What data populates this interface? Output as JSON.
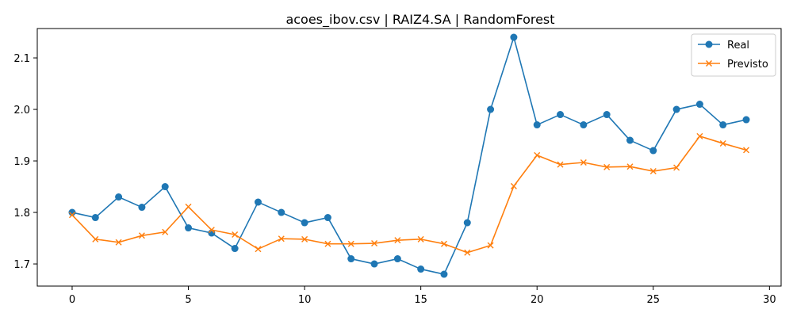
{
  "chart_data": {
    "type": "line",
    "title": "acoes_ibov.csv | RAIZ4.SA | RandomForest",
    "xlabel": "",
    "ylabel": "",
    "xlim": [
      -1.5,
      30.5
    ],
    "ylim": [
      1.657,
      2.157
    ],
    "x_ticks": [
      0,
      5,
      10,
      15,
      20,
      25,
      30
    ],
    "x_tick_labels": [
      "0",
      "5",
      "10",
      "15",
      "20",
      "25",
      "30"
    ],
    "y_ticks": [
      1.7,
      1.8,
      1.9,
      2.0,
      2.1
    ],
    "y_tick_labels": [
      "1.7",
      "1.8",
      "1.9",
      "2.0",
      "2.1"
    ],
    "grid": false,
    "legend_position": "top-right",
    "x": [
      0,
      1,
      2,
      3,
      4,
      5,
      6,
      7,
      8,
      9,
      10,
      11,
      12,
      13,
      14,
      15,
      16,
      17,
      18,
      19,
      20,
      21,
      22,
      23,
      24,
      25,
      26,
      27,
      28,
      29
    ],
    "series": [
      {
        "name": "Real",
        "color": "#1f77b4",
        "marker": "circle",
        "values": [
          1.8,
          1.79,
          1.83,
          1.81,
          1.85,
          1.77,
          1.76,
          1.73,
          1.82,
          1.8,
          1.78,
          1.79,
          1.71,
          1.7,
          1.71,
          1.69,
          1.68,
          1.78,
          2.0,
          2.14,
          1.97,
          1.99,
          1.97,
          1.99,
          1.94,
          1.92,
          2.0,
          2.01,
          1.97,
          1.98
        ]
      },
      {
        "name": "Previsto",
        "color": "#ff7f0e",
        "marker": "x",
        "values": [
          1.795,
          1.748,
          1.742,
          1.755,
          1.762,
          1.811,
          1.766,
          1.757,
          1.729,
          1.749,
          1.748,
          1.739,
          1.739,
          1.74,
          1.746,
          1.748,
          1.739,
          1.722,
          1.736,
          1.851,
          1.911,
          1.893,
          1.897,
          1.888,
          1.889,
          1.88,
          1.887,
          1.948,
          1.934,
          1.921
        ]
      }
    ]
  }
}
